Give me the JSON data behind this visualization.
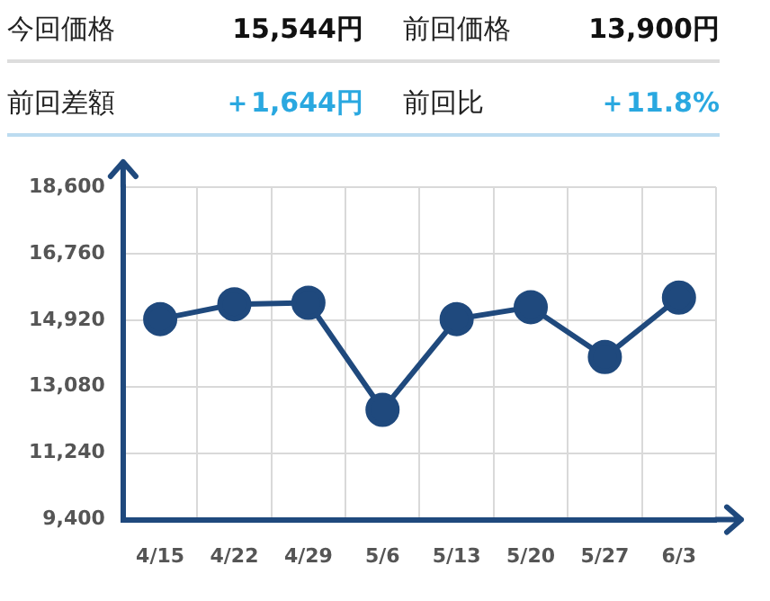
{
  "chart_data": {
    "type": "line",
    "categories": [
      "4/15",
      "4/22",
      "4/29",
      "5/6",
      "5/13",
      "5/20",
      "5/27",
      "6/3"
    ],
    "series": [
      {
        "color": "#1f497d",
        "values": [
          14950,
          15360,
          15400,
          12440,
          14950,
          15280,
          13900,
          15544
        ]
      }
    ],
    "ylim": [
      9400,
      18600
    ],
    "yticks": [
      {
        "value": 9400,
        "label": "9,400"
      },
      {
        "value": 11240,
        "label": "11,240"
      },
      {
        "value": 13080,
        "label": "13,080"
      },
      {
        "value": 14920,
        "label": "14,920"
      },
      {
        "value": 16760,
        "label": "16,760"
      },
      {
        "value": 18600,
        "label": "18,600"
      }
    ],
    "grid": true,
    "marker": "circle",
    "line_style": "solid",
    "legend": false,
    "annotations": [
      "今回価格",
      "15,544円",
      "前回価格",
      "13,900円",
      "前回差額",
      "＋1,644円",
      "前回比",
      "＋11.8%"
    ]
  }
}
